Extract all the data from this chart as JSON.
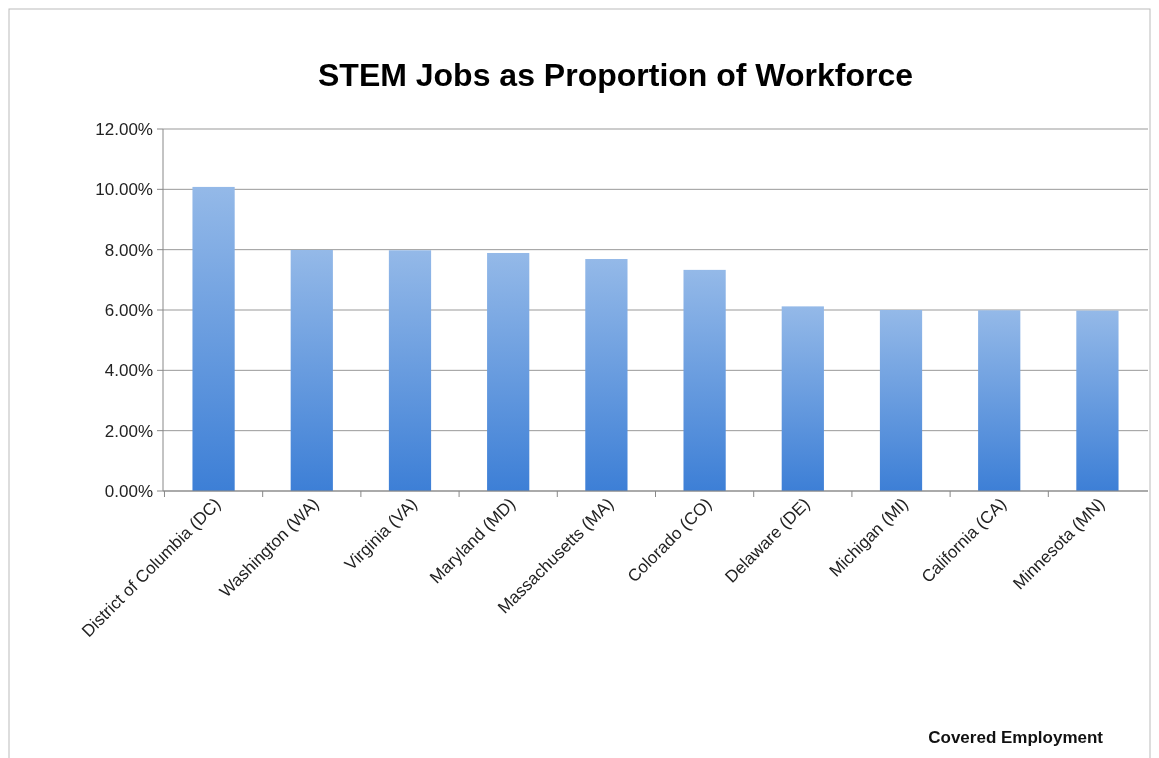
{
  "chart_data": {
    "type": "bar",
    "title": "STEM Jobs as Proportion of Workforce",
    "categories": [
      "District of Columbia (DC)",
      "Washington (WA)",
      "Virginia (VA)",
      "Maryland (MD)",
      "Massachusetts (MA)",
      "Colorado (CO)",
      "Delaware (DE)",
      "Michigan (MI)",
      "California (CA)",
      "Minnesota (MN)"
    ],
    "values": [
      10.08,
      7.99,
      7.98,
      7.89,
      7.69,
      7.33,
      6.12,
      6.0,
      5.99,
      5.98
    ],
    "color": "#3d7fd6",
    "ylim": [
      0,
      12
    ],
    "yticks": [
      {
        "value": 0,
        "label": "0.00%"
      },
      {
        "value": 2,
        "label": "2.00%"
      },
      {
        "value": 4,
        "label": "4.00%"
      },
      {
        "value": 6,
        "label": "6.00%"
      },
      {
        "value": 8,
        "label": "8.00%"
      },
      {
        "value": 10,
        "label": "10.00%"
      },
      {
        "value": 12,
        "label": "12.00%"
      }
    ],
    "grid": "y",
    "annotations": [
      "Covered Employment"
    ]
  }
}
